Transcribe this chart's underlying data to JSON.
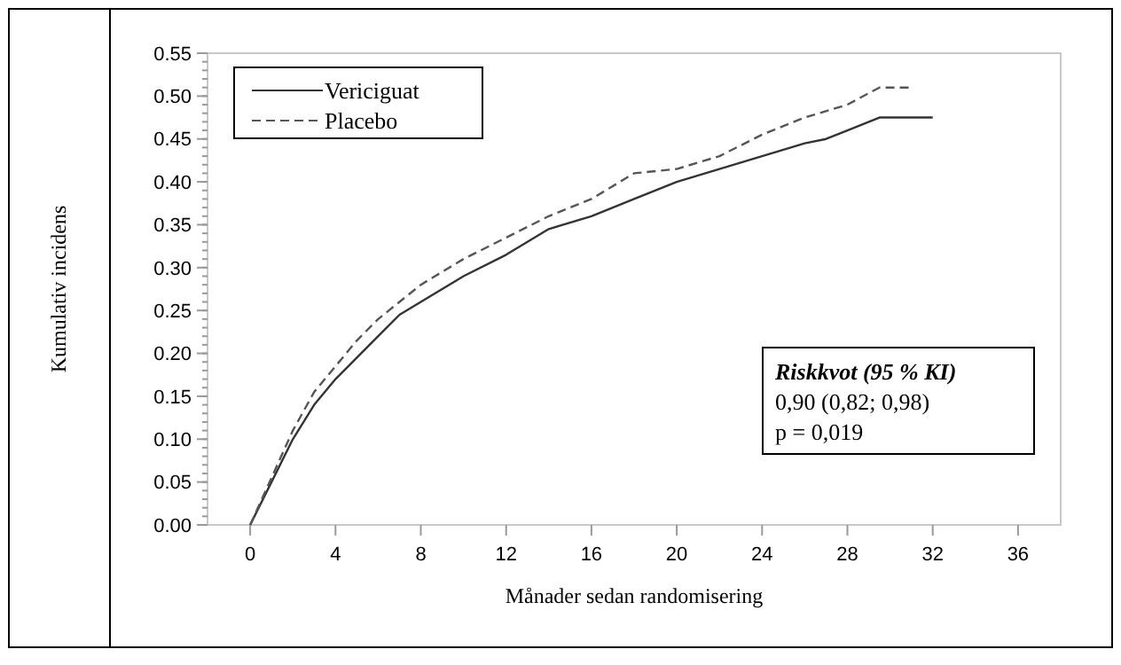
{
  "chart_data": {
    "type": "line",
    "xlabel": "Månader sedan randomisering",
    "ylabel": "Kumulativ incidens",
    "xlim": [
      -2,
      38
    ],
    "xticks": [
      0,
      4,
      8,
      12,
      16,
      20,
      24,
      28,
      32,
      36
    ],
    "ylim": [
      0,
      0.55
    ],
    "yticks": [
      {
        "value": 0,
        "label": "0.00"
      },
      {
        "value": 0.05,
        "label": "0.05"
      },
      {
        "value": 0.1,
        "label": "0.10"
      },
      {
        "value": 0.15,
        "label": "0.15"
      },
      {
        "value": 0.2,
        "label": "0.20"
      },
      {
        "value": 0.25,
        "label": "0.25"
      },
      {
        "value": 0.3,
        "label": "0.30"
      },
      {
        "value": 0.35,
        "label": "0.35"
      },
      {
        "value": 0.4,
        "label": "0.40"
      },
      {
        "value": 0.45,
        "label": "0.45"
      },
      {
        "value": 0.5,
        "label": "0.50"
      },
      {
        "value": 0.55,
        "label": "0.55"
      }
    ],
    "grid": false,
    "legend": "top left",
    "x": [
      0,
      1,
      2,
      3,
      4,
      5,
      6,
      7,
      8,
      10,
      12,
      13,
      14,
      16,
      18,
      20,
      22,
      24,
      26,
      27,
      28,
      29.5,
      32
    ],
    "series": [
      {
        "name": "Vericiguat",
        "color": "#333333",
        "line_style": "solid",
        "values": [
          0,
          0.05,
          0.1,
          0.14,
          0.17,
          0.195,
          0.22,
          0.245,
          0.26,
          0.29,
          0.315,
          0.33,
          0.345,
          0.36,
          0.38,
          0.4,
          0.415,
          0.43,
          0.445,
          0.45,
          0.46,
          0.475,
          0.475
        ]
      },
      {
        "name": "Placebo",
        "color": "#555555",
        "line_style": "dashed",
        "x": [
          0,
          1,
          2,
          3,
          4,
          5,
          6,
          7,
          8,
          10,
          12,
          14,
          16,
          18,
          20,
          22,
          24,
          26,
          28,
          29.5,
          31
        ],
        "values": [
          0,
          0.055,
          0.11,
          0.155,
          0.185,
          0.215,
          0.24,
          0.26,
          0.28,
          0.31,
          0.335,
          0.36,
          0.38,
          0.41,
          0.415,
          0.43,
          0.455,
          0.475,
          0.49,
          0.51,
          0.51
        ]
      }
    ],
    "annotations": [
      "Riskkvot (95 % KI)",
      "0,90 (0,82; 0,98)",
      "p = 0,019"
    ]
  }
}
